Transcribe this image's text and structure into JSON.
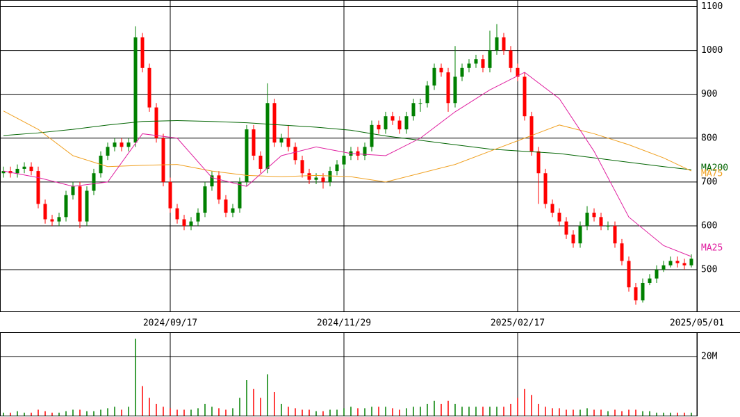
{
  "chart_data": [
    {
      "type": "candlestick",
      "up_color": "#008000",
      "down_color": "#ff0000",
      "xlim": [
        -0.5,
        99.8
      ],
      "ylim": [
        405,
        1115
      ],
      "xticks": [
        {
          "value": 24,
          "label": "2024/09/17"
        },
        {
          "value": 49,
          "label": "2024/11/29"
        },
        {
          "value": 74,
          "label": "2025/02/17"
        },
        {
          "value": 99.8,
          "label": "2025/05/01"
        }
      ],
      "yticks": [
        500,
        600,
        700,
        800,
        900,
        1000,
        1100
      ],
      "open": [
        720,
        725,
        720,
        730,
        735,
        725,
        650,
        615,
        610,
        620,
        670,
        690,
        610,
        680,
        720,
        760,
        780,
        790,
        780,
        790,
        1030,
        960,
        870,
        800,
        700,
        640,
        615,
        600,
        610,
        630,
        690,
        715,
        660,
        630,
        640,
        700,
        820,
        760,
        730,
        880,
        790,
        800,
        780,
        750,
        720,
        705,
        710,
        700,
        725,
        740,
        760,
        770,
        760,
        780,
        830,
        820,
        850,
        840,
        820,
        850,
        880,
        880,
        920,
        960,
        950,
        880,
        940,
        960,
        970,
        980,
        960,
        1000,
        1030,
        1000,
        960,
        940,
        850,
        770,
        720,
        650,
        630,
        610,
        580,
        560,
        600,
        630,
        620,
        600,
        600,
        560,
        520,
        460,
        430,
        470,
        480,
        500,
        510,
        520,
        515,
        510
      ],
      "high": [
        735,
        735,
        740,
        745,
        745,
        735,
        660,
        625,
        630,
        680,
        700,
        700,
        690,
        730,
        770,
        790,
        800,
        800,
        800,
        1055,
        1040,
        970,
        880,
        810,
        710,
        650,
        625,
        620,
        640,
        700,
        725,
        725,
        670,
        650,
        710,
        830,
        830,
        770,
        925,
        890,
        810,
        830,
        790,
        760,
        730,
        720,
        720,
        735,
        750,
        770,
        780,
        780,
        790,
        840,
        840,
        860,
        860,
        850,
        860,
        890,
        890,
        930,
        970,
        970,
        960,
        1010,
        970,
        980,
        990,
        990,
        1045,
        1060,
        1040,
        1010,
        970,
        950,
        860,
        780,
        730,
        660,
        640,
        620,
        590,
        610,
        645,
        640,
        630,
        610,
        610,
        570,
        530,
        470,
        480,
        490,
        510,
        520,
        530,
        530,
        525,
        535
      ],
      "low": [
        710,
        710,
        710,
        720,
        715,
        640,
        605,
        600,
        600,
        610,
        660,
        595,
        600,
        670,
        710,
        750,
        770,
        770,
        770,
        780,
        950,
        860,
        790,
        690,
        630,
        605,
        590,
        590,
        600,
        620,
        680,
        650,
        620,
        620,
        630,
        690,
        750,
        720,
        720,
        780,
        780,
        770,
        740,
        710,
        695,
        695,
        685,
        690,
        715,
        730,
        750,
        750,
        750,
        770,
        810,
        810,
        830,
        810,
        810,
        840,
        860,
        870,
        910,
        940,
        860,
        870,
        930,
        950,
        960,
        950,
        950,
        990,
        990,
        950,
        930,
        840,
        760,
        650,
        640,
        620,
        600,
        570,
        550,
        550,
        590,
        610,
        590,
        590,
        550,
        510,
        450,
        420,
        425,
        465,
        470,
        495,
        505,
        505,
        500,
        505
      ],
      "close": [
        725,
        720,
        730,
        735,
        725,
        650,
        615,
        610,
        620,
        670,
        690,
        610,
        680,
        720,
        760,
        780,
        790,
        780,
        790,
        1030,
        960,
        870,
        800,
        700,
        640,
        615,
        600,
        610,
        630,
        690,
        715,
        660,
        630,
        640,
        700,
        820,
        760,
        730,
        880,
        790,
        800,
        780,
        750,
        720,
        705,
        710,
        700,
        725,
        740,
        760,
        770,
        760,
        780,
        830,
        820,
        850,
        840,
        820,
        850,
        880,
        880,
        920,
        960,
        950,
        880,
        940,
        960,
        970,
        980,
        960,
        1000,
        1030,
        1000,
        960,
        940,
        850,
        770,
        720,
        650,
        630,
        610,
        580,
        560,
        600,
        630,
        620,
        600,
        600,
        560,
        520,
        460,
        430,
        470,
        480,
        500,
        510,
        520,
        515,
        510,
        525
      ],
      "ma_x": [
        0,
        5,
        10,
        15,
        20,
        25,
        30,
        35,
        40,
        45,
        50,
        55,
        60,
        65,
        70,
        75,
        80,
        85,
        90,
        95,
        99
      ],
      "series": [
        {
          "name": "MA200",
          "color": "#006400",
          "values": [
            806,
            812,
            820,
            830,
            838,
            840,
            838,
            835,
            830,
            825,
            818,
            805,
            795,
            785,
            775,
            770,
            765,
            755,
            745,
            735,
            728
          ]
        },
        {
          "name": "MA75",
          "color": "#f0a020",
          "values": [
            862,
            820,
            760,
            735,
            738,
            740,
            725,
            715,
            712,
            715,
            712,
            700,
            720,
            740,
            770,
            800,
            830,
            810,
            785,
            755,
            725
          ]
        },
        {
          "name": "MA25",
          "color": "#e020a0",
          "values": [
            725,
            710,
            690,
            700,
            810,
            800,
            710,
            690,
            760,
            780,
            765,
            760,
            800,
            860,
            910,
            950,
            890,
            770,
            620,
            555,
            530
          ]
        }
      ]
    },
    {
      "type": "bar",
      "ylim": [
        0,
        28
      ],
      "yticks": [
        {
          "value": 20,
          "label": "20M"
        }
      ],
      "values": [
        1,
        1,
        1.5,
        1,
        1,
        2,
        1.5,
        1,
        1,
        1.5,
        2,
        2,
        1.5,
        1.5,
        2,
        2.5,
        3,
        2,
        3,
        26,
        10,
        6,
        4,
        3,
        2.5,
        2,
        2,
        2,
        2.5,
        4,
        3,
        2.5,
        2,
        2.5,
        6,
        12,
        9,
        6,
        14,
        8,
        4,
        3,
        2.5,
        2,
        2,
        1.5,
        1.5,
        2,
        2,
        2.5,
        3,
        2.5,
        2.5,
        3,
        3,
        3,
        2.5,
        2,
        2.5,
        3,
        3,
        4,
        5,
        4,
        5,
        4,
        3,
        3,
        3,
        3,
        3,
        3,
        3,
        4,
        6,
        9,
        7,
        4,
        3,
        2.5,
        2.5,
        2,
        2,
        2,
        2.5,
        2,
        2,
        1.5,
        2,
        1.5,
        2,
        2,
        1.5,
        1.5,
        1,
        1,
        1,
        1,
        1,
        1
      ]
    }
  ]
}
